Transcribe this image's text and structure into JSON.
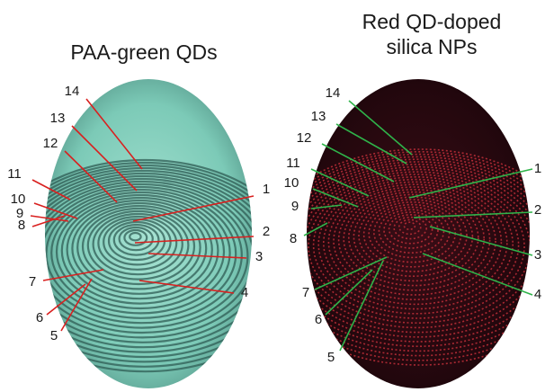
{
  "panels": [
    {
      "title": "PAA-green QDs",
      "image": "fingerprint-green-fluorescence",
      "base_color": "#8fd3c2",
      "ridge_color": "#2f5d55",
      "line_color": "#d9201f",
      "labels": [
        "1",
        "2",
        "3",
        "4",
        "5",
        "6",
        "7",
        "8",
        "9",
        "10",
        "11",
        "12",
        "13",
        "14"
      ]
    },
    {
      "title_lines": [
        "Red QD-doped",
        "silica NPs"
      ],
      "image": "fingerprint-red-fluorescence",
      "base_color": "#2a0a10",
      "ridge_color": "#c2303a",
      "line_color": "#2fb34a",
      "labels": [
        "1",
        "2",
        "3",
        "4",
        "5",
        "6",
        "7",
        "8",
        "9",
        "10",
        "11",
        "12",
        "13",
        "14"
      ]
    }
  ]
}
